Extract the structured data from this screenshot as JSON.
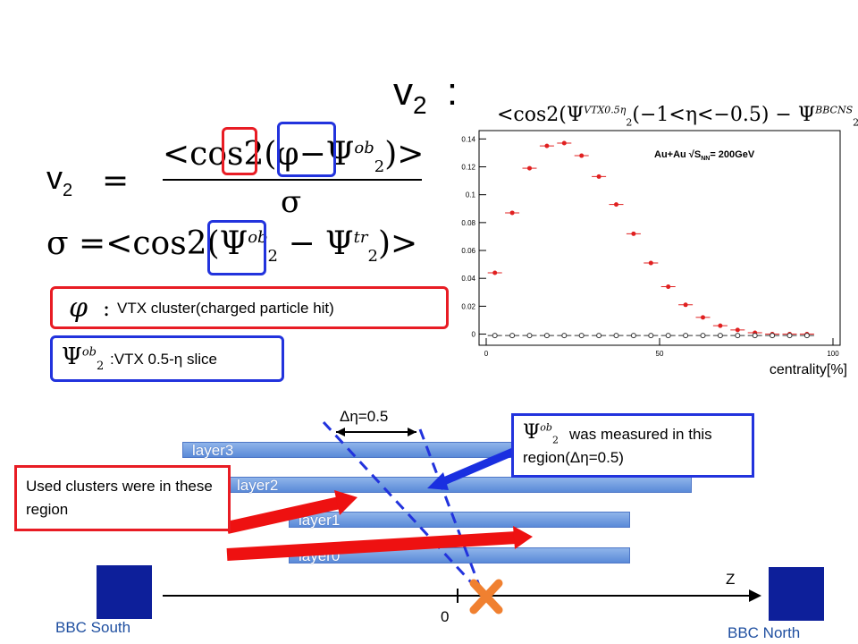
{
  "title": {
    "main": "v",
    "sub": "2",
    "colon": ":"
  },
  "equations": {
    "v2_lhs": "v",
    "v2_sub": "2",
    "v2_num": "<cos2(φ−Ψ",
    "v2_num_sup": "ob",
    "v2_num_sub": "2",
    "v2_num_end": ")>",
    "v2_den": "σ",
    "sigma_lhs": "σ =",
    "sigma_body": "<cos2(Ψ",
    "sigma_ob_sup": "ob",
    "sigma_ob_sub": "2",
    "sigma_minus": "− Ψ",
    "sigma_tr_sup": "tr",
    "sigma_tr_sub": "2",
    "sigma_end": ")>"
  },
  "legend_phi": {
    "symbol": "φ",
    "colon": ":",
    "text": "VTX cluster(charged particle hit)"
  },
  "legend_psi": {
    "symbol": "Ψ",
    "sup": "ob",
    "sub": "2",
    "text": ":VTX 0.5-η slice"
  },
  "plot_title": "<cos2(Ψ",
  "plot_title_sup": "VTX0.5η",
  "plot_title_sub": "2",
  "plot_title_mid": "(−1<η<−0.5) − Ψ",
  "plot_title_sup2": "BBCNS",
  "plot_title_sub2": "2",
  "plot_title_end": ")>",
  "chart_data": {
    "type": "scatter",
    "annotation": "Au+Au √S",
    "annotation_sub": "NN",
    "annotation_end": "= 200GeV",
    "xlabel": "centrality[%]",
    "xlim": [
      0,
      100
    ],
    "ylim": [
      -0.008,
      0.146
    ],
    "x_ticks": [
      "0",
      "50",
      "100"
    ],
    "y_ticks": [
      "0",
      "0.02",
      "0.04",
      "0.06",
      "0.08",
      "0.1",
      "0.12",
      "0.14"
    ],
    "series": [
      {
        "name": "",
        "color": "#e02020",
        "marker": "filled-circle",
        "x": [
          2.5,
          7.5,
          12.5,
          17.5,
          22.5,
          27.5,
          32.5,
          37.5,
          42.5,
          47.5,
          52.5,
          57.5,
          62.5,
          67.5,
          72.5,
          77.5,
          82.5,
          87.5,
          92.5
        ],
        "y": [
          0.044,
          0.087,
          0.119,
          0.135,
          0.137,
          0.128,
          0.113,
          0.093,
          0.072,
          0.051,
          0.034,
          0.021,
          0.012,
          0.006,
          0.003,
          0.001,
          0.0,
          0.0,
          0.0
        ]
      },
      {
        "name": "",
        "color": "#333333",
        "marker": "open-circle",
        "x": [
          2.5,
          7.5,
          12.5,
          17.5,
          22.5,
          27.5,
          32.5,
          37.5,
          42.5,
          47.5,
          52.5,
          57.5,
          62.5,
          67.5,
          72.5,
          77.5,
          82.5,
          87.5,
          92.5
        ],
        "y": [
          -0.001,
          -0.001,
          -0.001,
          -0.001,
          -0.001,
          -0.001,
          -0.001,
          -0.001,
          -0.001,
          -0.001,
          -0.001,
          -0.001,
          -0.001,
          -0.001,
          -0.001,
          -0.001,
          -0.001,
          -0.001,
          -0.001
        ]
      }
    ]
  },
  "diagram": {
    "delta_eta": "Δη=0.5",
    "layers": [
      "layer3",
      "layer2",
      "layer1",
      "layer0"
    ],
    "callout_left": "Used clusters were in these region",
    "callout_right_suffix": "was measured in this region(Δη=0.5)",
    "callout_right_symbol": "Ψ",
    "callout_right_sup": "ob",
    "callout_right_sub": "2",
    "axis_z": "Z",
    "origin": "0",
    "bbc_south": "BBC South",
    "bbc_north": "BBC North"
  }
}
